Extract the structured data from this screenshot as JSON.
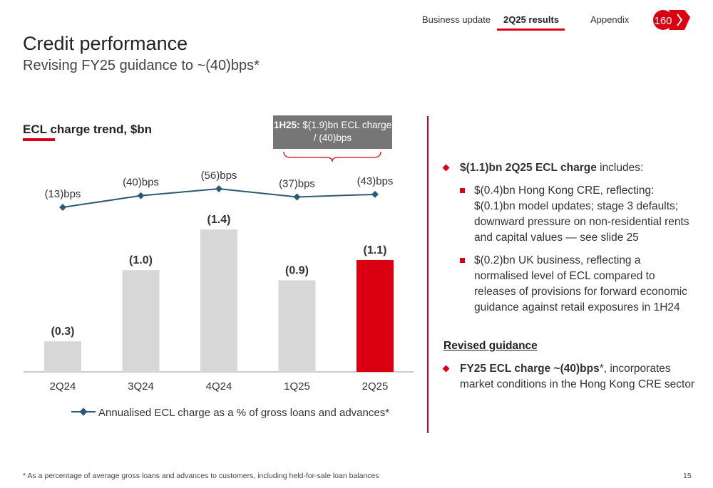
{
  "nav": {
    "tabs": [
      {
        "label": "Business update",
        "active": false
      },
      {
        "label": "2Q25 results",
        "active": true
      },
      {
        "label": "Appendix",
        "active": false
      }
    ],
    "logo_text": "160",
    "accent_color": "#db0011"
  },
  "header": {
    "title": "Credit performance",
    "subtitle": "Revising FY25 guidance to ~(40)bps*"
  },
  "callout": {
    "bold": "1H25:",
    "text": " $(1.9)bn ECL charge / (40)bps"
  },
  "chart_data": {
    "type": "bar",
    "title": "ECL charge trend, $bn",
    "categories": [
      "2Q24",
      "3Q24",
      "4Q24",
      "1Q25",
      "2Q25"
    ],
    "values": [
      -0.3,
      -1.0,
      -1.4,
      -0.9,
      -1.1
    ],
    "value_labels": [
      "(0.3)",
      "(1.0)",
      "(1.4)",
      "(0.9)",
      "(1.1)"
    ],
    "bar_colors": [
      "#d7d7d7",
      "#d7d7d7",
      "#d7d7d7",
      "#d7d7d7",
      "#db0011"
    ],
    "line_series": {
      "name": "Annualised ECL charge as a % of gross loans and advances*",
      "values": [
        -13,
        -40,
        -56,
        -37,
        -43
      ],
      "labels": [
        "(13)bps",
        "(40)bps",
        "(56)bps",
        "(37)bps",
        "(43)bps"
      ],
      "color": "#2c5a74"
    },
    "legend_position": "bottom",
    "grid": false
  },
  "right_panel": {
    "main_bullet_bold": "$(1.1)bn 2Q25 ECL charge",
    "main_bullet_rest": " includes:",
    "sub_bullets": [
      "$(0.4)bn Hong Kong CRE, reflecting: $(0.1)bn model updates; stage 3 defaults; downward pressure on non-residential rents and capital values — see slide 25",
      "$(0.2)bn UK business, reflecting a normalised level of ECL compared to releases of provisions for forward economic guidance against retail exposures in 1H24"
    ],
    "guidance_heading": "Revised guidance",
    "guidance_bold": "FY25 ECL charge ~(40)bps",
    "guidance_rest": "*, incorporates market conditions in the Hong Kong CRE sector"
  },
  "footer": {
    "footnote": "* As a percentage of average gross loans and advances to customers, including held-for-sale loan balances",
    "page_number": "15"
  }
}
